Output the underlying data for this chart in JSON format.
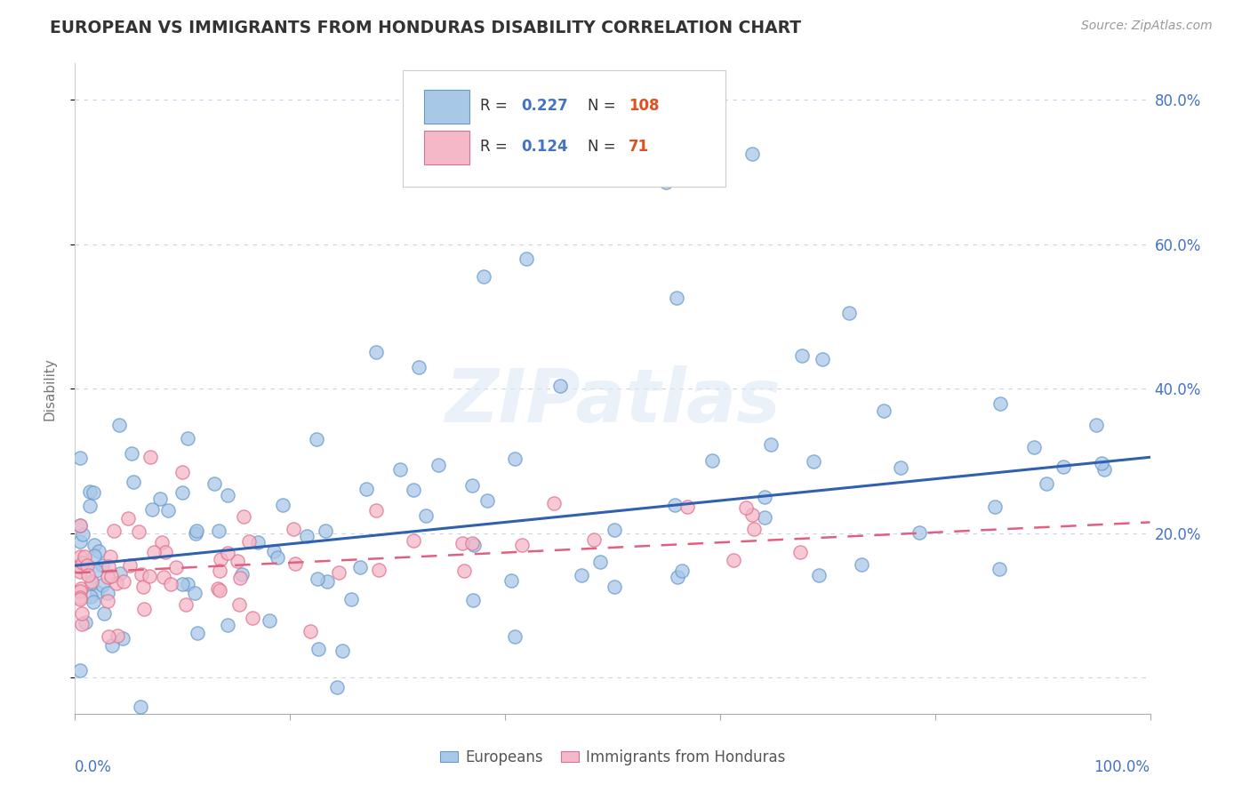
{
  "title": "EUROPEAN VS IMMIGRANTS FROM HONDURAS DISABILITY CORRELATION CHART",
  "source": "Source: ZipAtlas.com",
  "ylabel": "Disability",
  "series1_label": "Europeans",
  "series2_label": "Immigrants from Honduras",
  "series1_color": "#a8c8e8",
  "series1_edge": "#6699cc",
  "series2_color": "#f4b8c8",
  "series2_edge": "#e07090",
  "series1_R": "0.227",
  "series1_N": "108",
  "series2_R": "0.124",
  "series2_N": "71",
  "xlim": [
    0,
    1
  ],
  "ylim": [
    -0.05,
    0.85
  ],
  "yticks": [
    0.0,
    0.2,
    0.4,
    0.6,
    0.8
  ],
  "background_color": "#ffffff",
  "grid_color": "#c8d4e8",
  "title_color": "#333333",
  "axis_label_color": "#777777",
  "tick_color": "#4472c4",
  "trend1_color": "#3060b0",
  "trend2_color": "#e06080",
  "trend1_x0": 0.0,
  "trend1_x1": 1.0,
  "trend1_y0": 0.155,
  "trend1_y1": 0.305,
  "trend2_x0": 0.0,
  "trend2_x1": 1.0,
  "trend2_y0": 0.145,
  "trend2_y1": 0.215
}
